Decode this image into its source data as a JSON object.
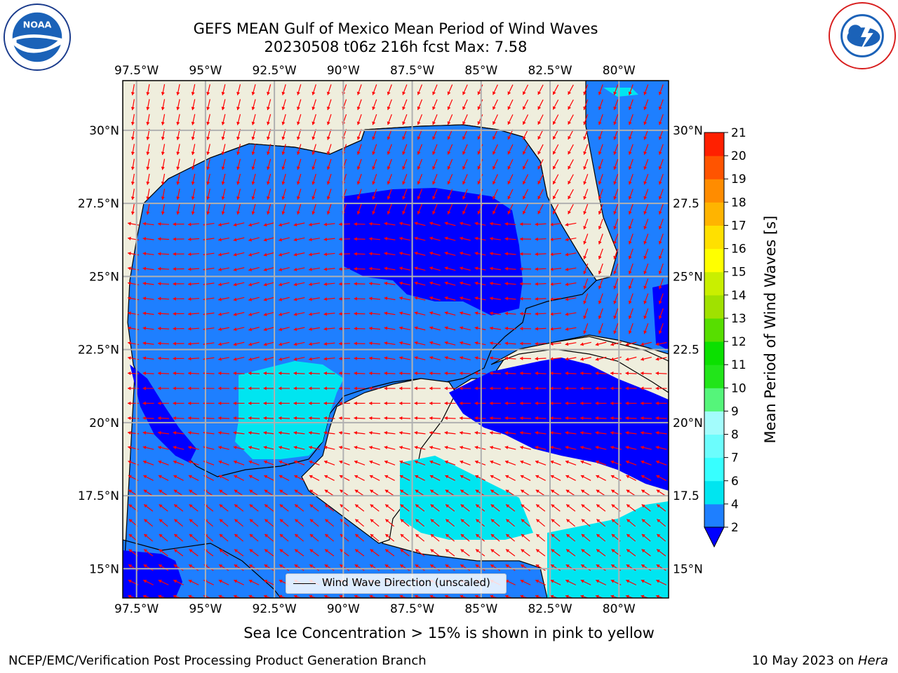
{
  "title_line1": "GEFS MEAN Gulf of Mexico Mean Period of Wind Waves",
  "title_line2": "20230508 t06z 216h fcst   Max: 7.58",
  "colorbar": {
    "label": "Mean Period of Wind Waves [s]",
    "ticks": [
      "2",
      "4",
      "6",
      "7",
      "8",
      "9",
      "10",
      "11",
      "12",
      "13",
      "14",
      "15",
      "16",
      "17",
      "18",
      "19",
      "20",
      "21"
    ],
    "colors": [
      "#1e7fff",
      "#00e5f0",
      "#37ffff",
      "#6cfdfd",
      "#a3fcfc",
      "#55f57a",
      "#22e51a",
      "#0be000",
      "#57de00",
      "#a0e100",
      "#c9ef00",
      "#ffff00",
      "#ffe000",
      "#ffb400",
      "#ff8c00",
      "#ff5400",
      "#ff2000"
    ]
  },
  "axes": {
    "lon_labels": [
      "97.5°W",
      "95°W",
      "92.5°W",
      "90°W",
      "87.5°W",
      "85°W",
      "82.5°W",
      "80°W"
    ],
    "lon_values": [
      -97.5,
      -95,
      -92.5,
      -90,
      -87.5,
      -85,
      -82.5,
      -80
    ],
    "lat_labels_left": [
      "30°N",
      "27.5°N",
      "25°N",
      "22.5°N",
      "20°N",
      "17.5°N",
      "15°N"
    ],
    "lat_labels_right": [
      "30°N",
      "27.5",
      "25°N",
      "22.5",
      "20°N",
      "17.5",
      "15°N"
    ],
    "lat_values": [
      30,
      27.5,
      25,
      22.5,
      20,
      17.5,
      15
    ],
    "lon_range": [
      -98,
      -78.2
    ],
    "lat_range": [
      14,
      31.7
    ]
  },
  "colors": {
    "land": "#efeedd",
    "water_2_4": "#1e7fff",
    "water_lt2": "#0000ff",
    "water_4_6": "#00e5f0",
    "water_6_7": "#37ffff",
    "arrow": "#ff0000",
    "grid": "#b0b0b0"
  },
  "legend_label": "Wind Wave Direction (unscaled)",
  "note": "Sea Ice Concentration > 15% is shown in pink to yellow",
  "credit": "NCEP/EMC/Verification Post Processing Product Generation Branch",
  "date_text": "10 May 2023 on ",
  "host": "Hera",
  "logos": {
    "left": "noaa-logo",
    "right": "nws-logo"
  }
}
